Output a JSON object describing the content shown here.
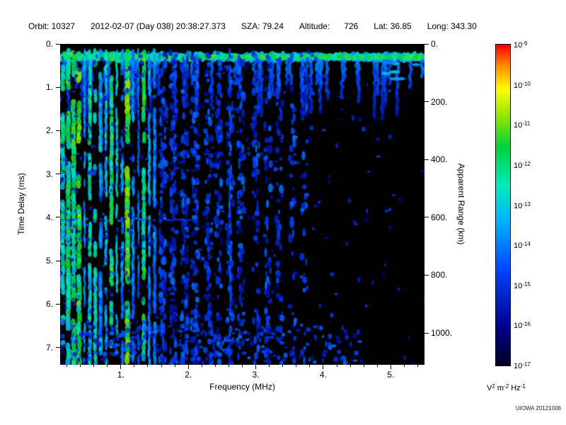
{
  "header": {
    "fields": [
      "Orbit: 10327",
      "2012-02-07 (Day 038) 20:38:27.373",
      "SZA: 79.24",
      "Altitude:      726",
      "Lat: 36.85",
      "Long: 343.30"
    ]
  },
  "chart_data": {
    "type": "heatmap",
    "title": "",
    "xlabel": "Frequency (MHz)",
    "ylabel_left": "Time Delay (ms)",
    "ylabel_right": "Apparent Range (km)",
    "xlim_mhz": [
      0.1,
      5.5
    ],
    "ylim_ms": [
      0,
      7.4
    ],
    "x_ticks": [
      {
        "value": 1,
        "label": "1."
      },
      {
        "value": 2,
        "label": "2."
      },
      {
        "value": 3,
        "label": "3."
      },
      {
        "value": 4,
        "label": "4."
      },
      {
        "value": 5,
        "label": "5."
      }
    ],
    "y_ticks_left": [
      {
        "value": 0,
        "label": "0."
      },
      {
        "value": 1,
        "label": "1."
      },
      {
        "value": 2,
        "label": "2."
      },
      {
        "value": 3,
        "label": "3."
      },
      {
        "value": 4,
        "label": "4."
      },
      {
        "value": 5,
        "label": "5."
      },
      {
        "value": 6,
        "label": "6."
      },
      {
        "value": 7,
        "label": "7."
      }
    ],
    "y_ticks_right": [
      {
        "value_km": 0,
        "label": "0."
      },
      {
        "value_km": 200,
        "label": "200."
      },
      {
        "value_km": 400,
        "label": "400."
      },
      {
        "value_km": 600,
        "label": "600."
      },
      {
        "value_km": 800,
        "label": "800."
      },
      {
        "value_km": 1000,
        "label": "1000."
      }
    ],
    "km_per_ms": 150,
    "colorbar": {
      "max_exp": -9,
      "min_exp": -17,
      "tick_exponents": [
        -9,
        -10,
        -11,
        -12,
        -13,
        -14,
        -15,
        -16,
        -17
      ],
      "unit_parts": [
        {
          "base": "V",
          "exp": "2"
        },
        {
          "base": "m",
          "exp": "-2"
        },
        {
          "base": "Hz",
          "exp": "-1"
        }
      ]
    },
    "features": {
      "noise_seed": 12345,
      "surface_band_ms": 0.3,
      "plasma_harmonic_start_mhz": 0.14,
      "plasma_harmonic_spacing_mhz": 0.08,
      "plasma_harmonics_max_mhz": 1.52,
      "diffuse_columns_mhz": [
        1.62,
        1.78,
        1.95,
        2.1,
        2.3,
        2.45,
        2.62,
        2.78,
        3.0,
        3.18,
        3.35,
        3.55,
        3.72
      ],
      "persistent_column_mhz": 2.62,
      "echo_line_ms": 4.05,
      "echo_line_max_mhz": 2.1
    },
    "credit": "UIOWA 20121008"
  }
}
